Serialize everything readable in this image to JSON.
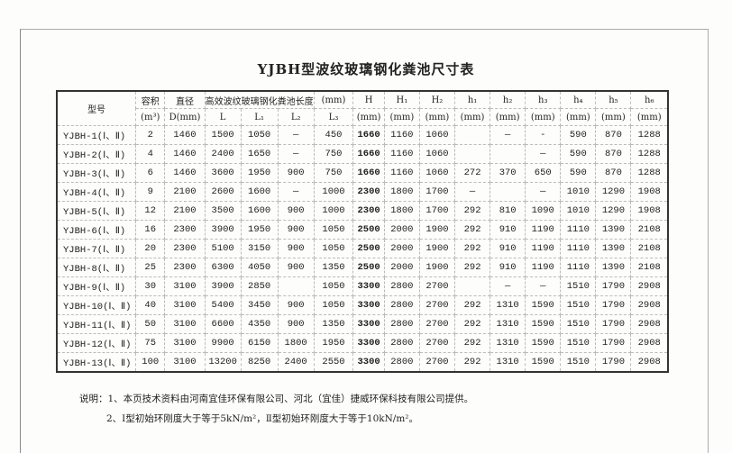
{
  "title": "YJBH型波纹玻璃钢化粪池尺寸表",
  "header": {
    "model": "型号",
    "volume": "容积",
    "volume_unit": "(m³)",
    "diameter": "直径",
    "diameter_unit": "D(mm)",
    "length_group": "高效波纹玻璃钢化粪池长度",
    "length_unit": "(mm)",
    "L": "L",
    "L1": "L₁",
    "L2": "L₂",
    "L3": "L₃",
    "heights": [
      "H",
      "H₁",
      "H₂",
      "h₁",
      "h₂",
      "h₃",
      "h₄",
      "h₅",
      "h₆"
    ],
    "height_unit": "(mm)"
  },
  "rows": [
    [
      "YJBH-1(Ⅰ、Ⅱ)",
      "2",
      "1460",
      "1500",
      "1050",
      "—",
      "450",
      "1660",
      "1160",
      "1060",
      "",
      "—",
      "-",
      "590",
      "870",
      "1288"
    ],
    [
      "YJBH-2(Ⅰ、Ⅱ)",
      "4",
      "1460",
      "2400",
      "1650",
      "—",
      "750",
      "1660",
      "1160",
      "1060",
      "",
      "",
      "—",
      "590",
      "870",
      "1288"
    ],
    [
      "YJBH-3(Ⅰ、Ⅱ)",
      "6",
      "1460",
      "3600",
      "1950",
      "900",
      "750",
      "1660",
      "1160",
      "1060",
      "272",
      "370",
      "650",
      "590",
      "870",
      "1288"
    ],
    [
      "YJBH-4(Ⅰ、Ⅱ)",
      "9",
      "2100",
      "2600",
      "1600",
      "—",
      "1000",
      "2300",
      "1800",
      "1700",
      "—",
      "",
      "—",
      "1010",
      "1290",
      "1908"
    ],
    [
      "YJBH-5(Ⅰ、Ⅱ)",
      "12",
      "2100",
      "3500",
      "1600",
      "900",
      "1000",
      "2300",
      "1800",
      "1700",
      "292",
      "810",
      "1090",
      "1010",
      "1290",
      "1908"
    ],
    [
      "YJBH-6(Ⅰ、Ⅱ)",
      "16",
      "2300",
      "3900",
      "1950",
      "900",
      "1050",
      "2500",
      "2000",
      "1900",
      "292",
      "910",
      "1190",
      "1110",
      "1390",
      "2108"
    ],
    [
      "YJBH-7(Ⅰ、Ⅱ)",
      "20",
      "2300",
      "5100",
      "3150",
      "900",
      "1050",
      "2500",
      "2000",
      "1900",
      "292",
      "910",
      "1190",
      "1110",
      "1390",
      "2108"
    ],
    [
      "YJBH-8(Ⅰ、Ⅱ)",
      "25",
      "2300",
      "6300",
      "4050",
      "900",
      "1350",
      "2500",
      "2000",
      "1900",
      "292",
      "910",
      "1190",
      "1110",
      "1390",
      "2108"
    ],
    [
      "YJBH-9(Ⅰ、Ⅱ)",
      "30",
      "3100",
      "3900",
      "2850",
      "",
      "1050",
      "3300",
      "2800",
      "2700",
      "",
      "—",
      "—",
      "1510",
      "1790",
      "2908"
    ],
    [
      "YJBH-10(Ⅰ、Ⅱ)",
      "40",
      "3100",
      "5400",
      "3450",
      "900",
      "1050",
      "3300",
      "2800",
      "2700",
      "292",
      "1310",
      "1590",
      "1510",
      "1790",
      "2908"
    ],
    [
      "YJBH-11(Ⅰ、Ⅱ)",
      "50",
      "3100",
      "6600",
      "4350",
      "900",
      "1350",
      "3300",
      "2800",
      "2700",
      "292",
      "1310",
      "1590",
      "1510",
      "1790",
      "2908"
    ],
    [
      "YJBH-12(Ⅰ、Ⅱ)",
      "75",
      "3100",
      "9900",
      "6150",
      "1800",
      "1950",
      "3300",
      "2800",
      "2700",
      "292",
      "1310",
      "1590",
      "1510",
      "1790",
      "2908"
    ],
    [
      "YJBH-13(Ⅰ、Ⅱ)",
      "100",
      "3100",
      "13200",
      "8250",
      "2400",
      "2550",
      "3300",
      "2800",
      "2700",
      "292",
      "1310",
      "1590",
      "1510",
      "1790",
      "2908"
    ]
  ],
  "notes": {
    "n1": "说明：1、本页技术资料由河南宜佳环保有限公司、河北（宜佳）捷威环保科技有限公司提供。",
    "n2": "2、Ⅰ型初始环刚度大于等于5kN/m²，Ⅱ型初始环刚度大于等于10kN/m²。"
  }
}
